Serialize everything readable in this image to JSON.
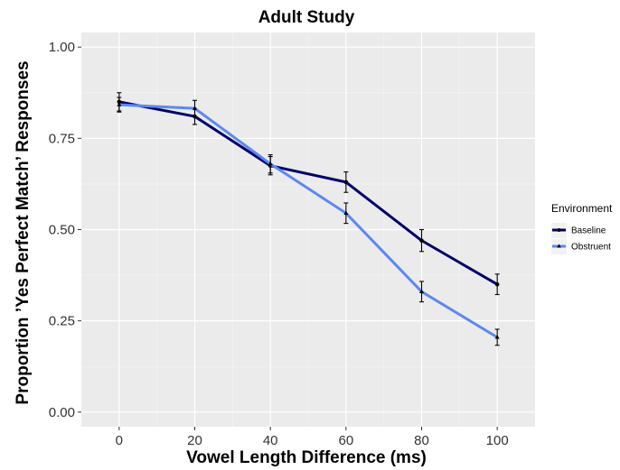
{
  "chart_data": {
    "type": "line",
    "title": "Adult Study",
    "xlabel": "Vowel Length Difference (ms)",
    "ylabel": "Proportion ’Yes Perfect Match’ Responses",
    "x": [
      0,
      20,
      40,
      60,
      80,
      100
    ],
    "x_ticks": [
      "0",
      "20",
      "40",
      "60",
      "80",
      "100"
    ],
    "y_ticks": [
      "0.00",
      "0.25",
      "0.50",
      "0.75",
      "1.00"
    ],
    "xlim": [
      -10,
      110
    ],
    "ylim": [
      -0.04,
      1.04
    ],
    "grid": true,
    "legend_title": "Environment",
    "legend_position": "right",
    "series": [
      {
        "name": "Baseline",
        "color": "#00006b",
        "marker": "circle",
        "values": [
          0.85,
          0.81,
          0.675,
          0.63,
          0.47,
          0.35
        ],
        "error": [
          0.025,
          0.022,
          0.025,
          0.028,
          0.03,
          0.028
        ]
      },
      {
        "name": "Obstruent",
        "color": "#5b88f2",
        "marker": "triangle",
        "values": [
          0.842,
          0.832,
          0.68,
          0.545,
          0.33,
          0.205
        ],
        "error": [
          0.02,
          0.022,
          0.025,
          0.028,
          0.028,
          0.022
        ]
      }
    ]
  }
}
